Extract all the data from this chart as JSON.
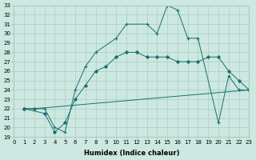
{
  "xlabel": "Humidex (Indice chaleur)",
  "xlim": [
    0,
    23
  ],
  "ylim": [
    19,
    33
  ],
  "bg_color": "#cce8e0",
  "grid_color": "#aaccc4",
  "line_color": "#1a7070",
  "line1_x": [
    1,
    2,
    23
  ],
  "line1_y": [
    22,
    22,
    24
  ],
  "line2_x": [
    1,
    3,
    4,
    5,
    6,
    7,
    8,
    9,
    10,
    11,
    12,
    13,
    14,
    15,
    16,
    17,
    18,
    19,
    20,
    21,
    22,
    23
  ],
  "line2_y": [
    22,
    21.5,
    19.5,
    20.5,
    23,
    24.5,
    26,
    26.5,
    27.5,
    28,
    28,
    27.5,
    27.5,
    27.5,
    27,
    27,
    27,
    27.5,
    27.5,
    26,
    25,
    24
  ],
  "line3_x": [
    1,
    3,
    4,
    5,
    6,
    7,
    8,
    10,
    11,
    13,
    14,
    15,
    16,
    17,
    18,
    20,
    21,
    22,
    23
  ],
  "line3_y": [
    22,
    22,
    20,
    19.5,
    24,
    26.5,
    28,
    29.5,
    31,
    31,
    30,
    33,
    32.5,
    29.5,
    29.5,
    20.5,
    25.5,
    24,
    24
  ],
  "xtick_fontsize": 5,
  "ytick_fontsize": 5,
  "xlabel_fontsize": 6
}
